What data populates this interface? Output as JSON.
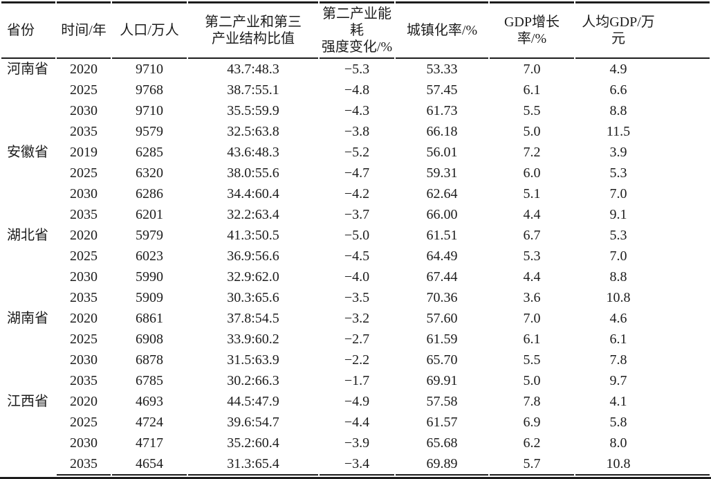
{
  "page": {
    "background": "#ffffff",
    "text_color": "#1c1c1c",
    "rule_color": "#1c1c1c"
  },
  "table": {
    "headers": [
      {
        "id": "province",
        "label": "省份"
      },
      {
        "id": "year",
        "label": "时间/年"
      },
      {
        "id": "population",
        "label": "人口/万人"
      },
      {
        "id": "industry_structure",
        "label": "第二产业和第三\n产业结构比值"
      },
      {
        "id": "energy_intensity",
        "label": "第二产业能耗\n强度变化/%"
      },
      {
        "id": "urbanization",
        "label": "城镇化率/%"
      },
      {
        "id": "gdp_growth",
        "label": "GDP增长率/%"
      },
      {
        "id": "gdp_per_capita",
        "label": "人均GDP/万元"
      }
    ],
    "groups": [
      {
        "province": "河南省",
        "rows": [
          {
            "year": "2020",
            "population": "9710",
            "industry_structure": "43.7:48.3",
            "energy_intensity": "−5.3",
            "urbanization": "53.33",
            "gdp_growth": "7.0",
            "gdp_per_capita": "4.9"
          },
          {
            "year": "2025",
            "population": "9768",
            "industry_structure": "38.7:55.1",
            "energy_intensity": "−4.8",
            "urbanization": "57.45",
            "gdp_growth": "6.1",
            "gdp_per_capita": "6.6"
          },
          {
            "year": "2030",
            "population": "9710",
            "industry_structure": "35.5:59.9",
            "energy_intensity": "−4.3",
            "urbanization": "61.73",
            "gdp_growth": "5.5",
            "gdp_per_capita": "8.8"
          },
          {
            "year": "2035",
            "population": "9579",
            "industry_structure": "32.5:63.8",
            "energy_intensity": "−3.8",
            "urbanization": "66.18",
            "gdp_growth": "5.0",
            "gdp_per_capita": "11.5"
          }
        ]
      },
      {
        "province": "安徽省",
        "rows": [
          {
            "year": "2019",
            "population": "6285",
            "industry_structure": "43.6:48.3",
            "energy_intensity": "−5.2",
            "urbanization": "56.01",
            "gdp_growth": "7.2",
            "gdp_per_capita": "3.9"
          },
          {
            "year": "2025",
            "population": "6320",
            "industry_structure": "38.0:55.6",
            "energy_intensity": "−4.7",
            "urbanization": "59.31",
            "gdp_growth": "6.0",
            "gdp_per_capita": "5.3"
          },
          {
            "year": "2030",
            "population": "6286",
            "industry_structure": "34.4:60.4",
            "energy_intensity": "−4.2",
            "urbanization": "62.64",
            "gdp_growth": "5.1",
            "gdp_per_capita": "7.0"
          },
          {
            "year": "2035",
            "population": "6201",
            "industry_structure": "32.2:63.4",
            "energy_intensity": "−3.7",
            "urbanization": "66.00",
            "gdp_growth": "4.4",
            "gdp_per_capita": "9.1"
          }
        ]
      },
      {
        "province": "湖北省",
        "rows": [
          {
            "year": "2020",
            "population": "5979",
            "industry_structure": "41.3:50.5",
            "energy_intensity": "−5.0",
            "urbanization": "61.51",
            "gdp_growth": "6.7",
            "gdp_per_capita": "5.3"
          },
          {
            "year": "2025",
            "population": "6023",
            "industry_structure": "36.9:56.6",
            "energy_intensity": "−4.5",
            "urbanization": "64.49",
            "gdp_growth": "5.3",
            "gdp_per_capita": "7.0"
          },
          {
            "year": "2030",
            "population": "5990",
            "industry_structure": "32.9:62.0",
            "energy_intensity": "−4.0",
            "urbanization": "67.44",
            "gdp_growth": "4.4",
            "gdp_per_capita": "8.8"
          },
          {
            "year": "2035",
            "population": "5909",
            "industry_structure": "30.3:65.6",
            "energy_intensity": "−3.5",
            "urbanization": "70.36",
            "gdp_growth": "3.6",
            "gdp_per_capita": "10.8"
          }
        ]
      },
      {
        "province": "湖南省",
        "rows": [
          {
            "year": "2020",
            "population": "6861",
            "industry_structure": "37.8:54.5",
            "energy_intensity": "−3.2",
            "urbanization": "57.60",
            "gdp_growth": "7.0",
            "gdp_per_capita": "4.6"
          },
          {
            "year": "2025",
            "population": "6908",
            "industry_structure": "33.9:60.2",
            "energy_intensity": "−2.7",
            "urbanization": "61.59",
            "gdp_growth": "6.1",
            "gdp_per_capita": "6.1"
          },
          {
            "year": "2030",
            "population": "6878",
            "industry_structure": "31.5:63.9",
            "energy_intensity": "−2.2",
            "urbanization": "65.70",
            "gdp_growth": "5.5",
            "gdp_per_capita": "7.8"
          },
          {
            "year": "2035",
            "population": "6785",
            "industry_structure": "30.2:66.3",
            "energy_intensity": "−1.7",
            "urbanization": "69.91",
            "gdp_growth": "5.0",
            "gdp_per_capita": "9.7"
          }
        ]
      },
      {
        "province": "江西省",
        "rows": [
          {
            "year": "2020",
            "population": "4693",
            "industry_structure": "44.5:47.9",
            "energy_intensity": "−4.9",
            "urbanization": "57.58",
            "gdp_growth": "7.8",
            "gdp_per_capita": "4.1"
          },
          {
            "year": "2025",
            "population": "4724",
            "industry_structure": "39.6:54.7",
            "energy_intensity": "−4.4",
            "urbanization": "61.57",
            "gdp_growth": "6.9",
            "gdp_per_capita": "5.8"
          },
          {
            "year": "2030",
            "population": "4717",
            "industry_structure": "35.2:60.4",
            "energy_intensity": "−3.9",
            "urbanization": "65.68",
            "gdp_growth": "6.2",
            "gdp_per_capita": "8.0"
          },
          {
            "year": "2035",
            "population": "4654",
            "industry_structure": "31.3:65.4",
            "energy_intensity": "−3.4",
            "urbanization": "69.89",
            "gdp_growth": "5.7",
            "gdp_per_capita": "10.8"
          }
        ]
      }
    ]
  },
  "chart_data": {
    "type": "table",
    "title": "",
    "columns": [
      "省份",
      "时间/年",
      "人口/万人",
      "第二产业和第三产业结构比值",
      "第二产业能耗强度变化/%",
      "城镇化率/%",
      "GDP增长率/%",
      "人均GDP/万元"
    ],
    "rows": [
      [
        "河南省",
        "2020",
        "9710",
        "43.7:48.3",
        "−5.3",
        "53.33",
        "7.0",
        "4.9"
      ],
      [
        "",
        "2025",
        "9768",
        "38.7:55.1",
        "−4.8",
        "57.45",
        "6.1",
        "6.6"
      ],
      [
        "",
        "2030",
        "9710",
        "35.5:59.9",
        "−4.3",
        "61.73",
        "5.5",
        "8.8"
      ],
      [
        "",
        "2035",
        "9579",
        "32.5:63.8",
        "−3.8",
        "66.18",
        "5.0",
        "11.5"
      ],
      [
        "安徽省",
        "2019",
        "6285",
        "43.6:48.3",
        "−5.2",
        "56.01",
        "7.2",
        "3.9"
      ],
      [
        "",
        "2025",
        "6320",
        "38.0:55.6",
        "−4.7",
        "59.31",
        "6.0",
        "5.3"
      ],
      [
        "",
        "2030",
        "6286",
        "34.4:60.4",
        "−4.2",
        "62.64",
        "5.1",
        "7.0"
      ],
      [
        "",
        "2035",
        "6201",
        "32.2:63.4",
        "−3.7",
        "66.00",
        "4.4",
        "9.1"
      ],
      [
        "湖北省",
        "2020",
        "5979",
        "41.3:50.5",
        "−5.0",
        "61.51",
        "6.7",
        "5.3"
      ],
      [
        "",
        "2025",
        "6023",
        "36.9:56.6",
        "−4.5",
        "64.49",
        "5.3",
        "7.0"
      ],
      [
        "",
        "2030",
        "5990",
        "32.9:62.0",
        "−4.0",
        "67.44",
        "4.4",
        "8.8"
      ],
      [
        "",
        "2035",
        "5909",
        "30.3:65.6",
        "−3.5",
        "70.36",
        "3.6",
        "10.8"
      ],
      [
        "湖南省",
        "2020",
        "6861",
        "37.8:54.5",
        "−3.2",
        "57.60",
        "7.0",
        "4.6"
      ],
      [
        "",
        "2025",
        "6908",
        "33.9:60.2",
        "−2.7",
        "61.59",
        "6.1",
        "6.1"
      ],
      [
        "",
        "2030",
        "6878",
        "31.5:63.9",
        "−2.2",
        "65.70",
        "5.5",
        "7.8"
      ],
      [
        "",
        "2035",
        "6785",
        "30.2:66.3",
        "−1.7",
        "69.91",
        "5.0",
        "9.7"
      ],
      [
        "江西省",
        "2020",
        "4693",
        "44.5:47.9",
        "−4.9",
        "57.58",
        "7.8",
        "4.1"
      ],
      [
        "",
        "2025",
        "4724",
        "39.6:54.7",
        "−4.4",
        "61.57",
        "6.9",
        "5.8"
      ],
      [
        "",
        "2030",
        "4717",
        "35.2:60.4",
        "−3.9",
        "65.68",
        "6.2",
        "8.0"
      ],
      [
        "",
        "2035",
        "4654",
        "31.3:65.4",
        "−3.4",
        "69.89",
        "5.7",
        "10.8"
      ]
    ]
  }
}
